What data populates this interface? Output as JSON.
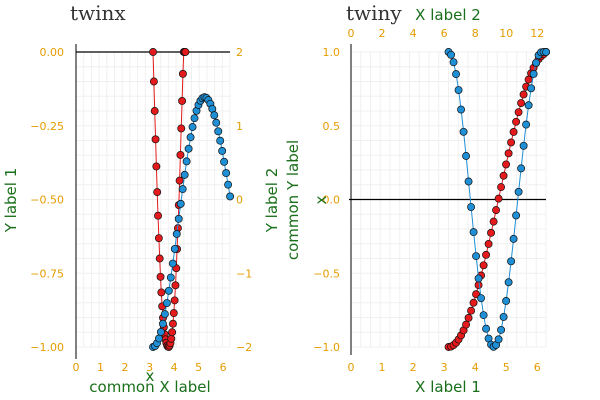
{
  "chart_data": [
    {
      "type": "scatter",
      "title": "twinx",
      "colors": {
        "ticks": "#e59c00",
        "labels": "#1a6f1a",
        "red": "#e41a1c",
        "blue": "#1f8fd6",
        "hline": "#000000"
      },
      "grid": true,
      "hline_y": 0,
      "left_axis": {
        "label": "Y label 1",
        "ylim": [
          -1.0,
          0.0
        ],
        "ticks": [
          -1.0,
          -0.75,
          -0.5,
          -0.25,
          0.0
        ],
        "tick_labels": [
          "−1.00",
          "−0.75",
          "−0.50",
          "−0.25",
          "0.00"
        ]
      },
      "right_axis": {
        "label": "",
        "ylim": [
          -2.0,
          2.0
        ],
        "ticks": [
          -2,
          -1,
          0,
          1,
          2
        ],
        "tick_labels": [
          "−2",
          "−1",
          "0",
          "1",
          "2"
        ]
      },
      "x_axis": {
        "label": "common X label",
        "inner_label": "x",
        "xlim": [
          0.0,
          6.28
        ],
        "ticks": [
          0,
          1,
          2,
          3,
          4,
          5,
          6
        ],
        "tick_labels": [
          "0",
          "1",
          "2",
          "3",
          "4",
          "5",
          "6"
        ]
      },
      "series": [
        {
          "color": "#e41a1c",
          "axis": "left",
          "x": [
            3.142,
            3.176,
            3.21,
            3.244,
            3.277,
            3.311,
            3.345,
            3.379,
            3.413,
            3.447,
            3.48,
            3.514,
            3.548,
            3.582,
            3.616,
            3.65,
            3.683,
            3.717,
            3.751,
            3.785,
            3.819,
            3.853,
            3.886,
            3.92,
            3.954,
            3.988,
            4.022,
            4.056,
            4.089,
            4.123,
            4.157,
            4.191,
            4.225,
            4.259,
            4.292,
            4.326,
            4.36,
            4.394,
            4.428,
            4.462
          ],
          "y": [
            0.0,
            -0.1,
            -0.2,
            -0.296,
            -0.388,
            -0.475,
            -0.555,
            -0.631,
            -0.7,
            -0.762,
            -0.815,
            -0.862,
            -0.901,
            -0.933,
            -0.957,
            -0.974,
            -0.986,
            -0.995,
            -0.999,
            -1.0,
            -0.995,
            -0.987,
            -0.972,
            -0.95,
            -0.921,
            -0.885,
            -0.842,
            -0.791,
            -0.733,
            -0.668,
            -0.597,
            -0.519,
            -0.436,
            -0.349,
            -0.259,
            -0.166,
            -0.074,
            0.0,
            0.0,
            0.0
          ]
        },
        {
          "color": "#1f8fd6",
          "axis": "right",
          "x": [
            3.142,
            3.223,
            3.303,
            3.384,
            3.464,
            3.545,
            3.625,
            3.706,
            3.786,
            3.867,
            3.947,
            4.028,
            4.108,
            4.189,
            4.27,
            4.35,
            4.431,
            4.511,
            4.592,
            4.672,
            4.753,
            4.833,
            4.914,
            4.994,
            5.075,
            5.156,
            5.236,
            5.317,
            5.397,
            5.478,
            5.558,
            5.639,
            5.719,
            5.8,
            5.88,
            5.961,
            6.041,
            6.122,
            6.202,
            6.283
          ],
          "y": [
            -2.0,
            -1.987,
            -1.948,
            -1.884,
            -1.796,
            -1.685,
            -1.554,
            -1.404,
            -1.238,
            -1.058,
            -0.868,
            -0.67,
            -0.467,
            -0.262,
            -0.059,
            0.141,
            0.334,
            0.517,
            0.688,
            0.844,
            0.983,
            1.103,
            1.203,
            1.282,
            1.339,
            1.374,
            1.387,
            1.378,
            1.348,
            1.298,
            1.229,
            1.143,
            1.041,
            0.925,
            0.797,
            0.658,
            0.511,
            0.358,
            0.201,
            0.041
          ]
        }
      ]
    },
    {
      "type": "scatter",
      "title": "twiny",
      "colors": {
        "ticks": "#e59c00",
        "labels": "#1a6f1a",
        "red": "#e41a1c",
        "blue": "#1f8fd6",
        "hline": "#000000"
      },
      "grid": true,
      "hline_y": 0,
      "y_axis": {
        "label": "common Y label",
        "secondary_label": "Y label 2",
        "inner_label": "x",
        "ylim": [
          -1.0,
          1.0
        ],
        "ticks": [
          -1.0,
          -0.5,
          0.0,
          0.5,
          1.0
        ],
        "tick_labels": [
          "−1.0",
          "−0.5",
          "0.0",
          "0.5",
          "1.0"
        ]
      },
      "bottom_axis": {
        "label": "X label 1",
        "xlim": [
          0.0,
          6.28
        ],
        "ticks": [
          0,
          1,
          2,
          3,
          4,
          5,
          6
        ],
        "tick_labels": [
          "0",
          "1",
          "2",
          "3",
          "4",
          "5",
          "6"
        ]
      },
      "top_axis": {
        "label": "X label 2",
        "xlim": [
          0.0,
          12.56
        ],
        "ticks": [
          0,
          2,
          4,
          6,
          8,
          10,
          12
        ],
        "tick_labels": [
          "0",
          "2",
          "4",
          "6",
          "8",
          "10",
          "12"
        ]
      },
      "series": [
        {
          "color": "#e41a1c",
          "axis": "bottom",
          "x": [
            3.142,
            3.223,
            3.303,
            3.384,
            3.464,
            3.545,
            3.625,
            3.706,
            3.786,
            3.867,
            3.947,
            4.028,
            4.108,
            4.189,
            4.27,
            4.35,
            4.431,
            4.511,
            4.592,
            4.672,
            4.753,
            4.833,
            4.914,
            4.994,
            5.075,
            5.156,
            5.236,
            5.317,
            5.397,
            5.478,
            5.558,
            5.639,
            5.719,
            5.8,
            5.88,
            5.961,
            6.041,
            6.122,
            6.202,
            6.283
          ],
          "y": [
            -1.0,
            -0.997,
            -0.987,
            -0.971,
            -0.949,
            -0.921,
            -0.887,
            -0.848,
            -0.803,
            -0.754,
            -0.7,
            -0.642,
            -0.58,
            -0.515,
            -0.446,
            -0.375,
            -0.301,
            -0.226,
            -0.15,
            -0.072,
            0.006,
            0.084,
            0.161,
            0.238,
            0.313,
            0.387,
            0.458,
            0.527,
            0.592,
            0.654,
            0.712,
            0.765,
            0.813,
            0.856,
            0.893,
            0.925,
            0.951,
            0.971,
            0.985,
            1.0
          ]
        },
        {
          "color": "#1f8fd6",
          "axis": "top",
          "x": [
            6.283,
            6.444,
            6.605,
            6.767,
            6.928,
            7.089,
            7.25,
            7.411,
            7.572,
            7.734,
            7.895,
            8.056,
            8.217,
            8.378,
            8.539,
            8.7,
            8.862,
            9.023,
            9.184,
            9.345,
            9.506,
            9.667,
            9.829,
            9.99,
            10.151,
            10.312,
            10.473,
            10.634,
            10.795,
            10.957,
            11.118,
            11.279,
            11.44,
            11.601,
            11.762,
            11.923,
            12.085,
            12.246,
            12.407,
            12.566
          ],
          "y": [
            1.0,
            0.981,
            0.931,
            0.85,
            0.742,
            0.61,
            0.459,
            0.295,
            0.122,
            -0.051,
            -0.221,
            -0.384,
            -0.535,
            -0.669,
            -0.784,
            -0.876,
            -0.943,
            -0.984,
            -0.999,
            -0.986,
            -0.948,
            -0.884,
            -0.796,
            -0.688,
            -0.561,
            -0.419,
            -0.267,
            -0.108,
            0.052,
            0.211,
            0.364,
            0.508,
            0.639,
            0.754,
            0.851,
            0.927,
            0.978,
            0.998,
            1.0,
            1.0
          ]
        }
      ]
    }
  ]
}
